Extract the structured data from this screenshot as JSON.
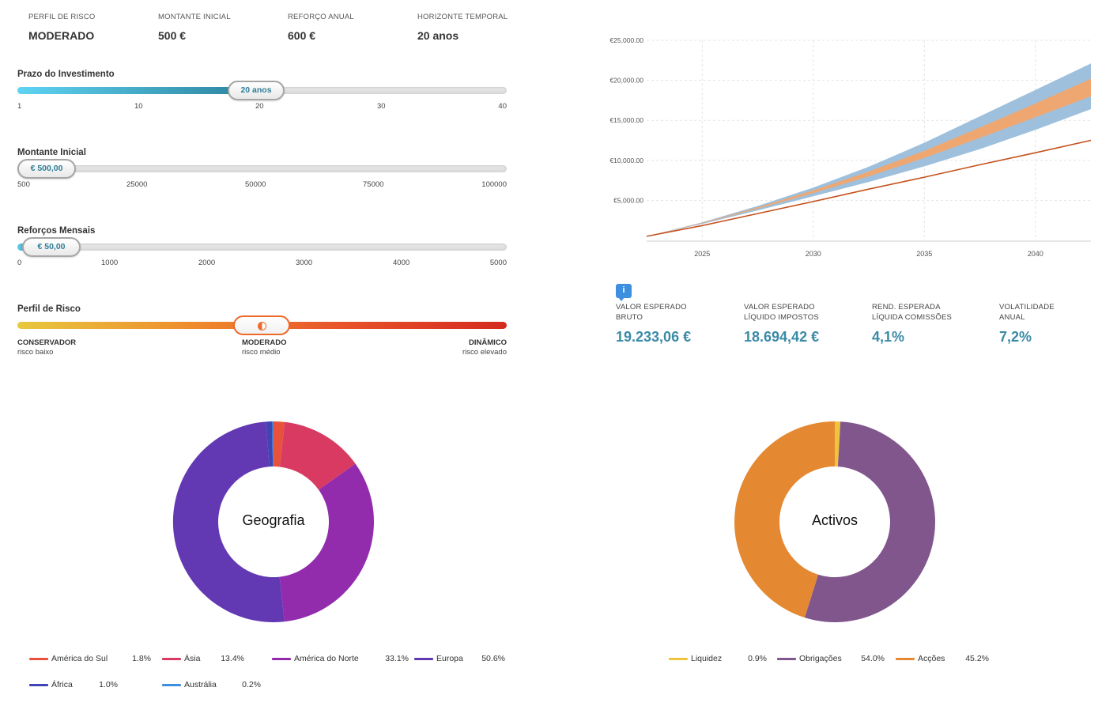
{
  "summary": {
    "risk_profile": {
      "label": "PERFIL DE RISCO",
      "value": "MODERADO"
    },
    "initial_amount": {
      "label": "MONTANTE INICIAL",
      "value": "500 €"
    },
    "annual_contribution": {
      "label": "REFORÇO ANUAL",
      "value": "600 €"
    },
    "time_horizon": {
      "label": "HORIZONTE TEMPORAL",
      "value": "20 anos"
    }
  },
  "sliders": {
    "term": {
      "title": "Prazo do Investimento",
      "value_label": "20 anos",
      "min": 1,
      "max": 40,
      "value": 20,
      "ticks": [
        "1",
        "10",
        "20",
        "30",
        "40"
      ]
    },
    "initial": {
      "title": "Montante Inicial",
      "value_label": "€ 500,00",
      "min": 500,
      "max": 100000,
      "value": 500,
      "ticks": [
        "500",
        "25000",
        "50000",
        "75000",
        "100000"
      ]
    },
    "monthly": {
      "title": "Reforços Mensais",
      "value_label": "€ 50,00",
      "min": 0,
      "max": 5000,
      "value": 50,
      "ticks": [
        "0",
        "1000",
        "2000",
        "3000",
        "4000",
        "5000"
      ]
    },
    "risk": {
      "title": "Perfil de Risco",
      "value": "MODERADO",
      "knob_icon": "half-circle-icon",
      "options": [
        {
          "name": "CONSERVADOR",
          "sub": "risco baixo"
        },
        {
          "name": "MODERADO",
          "sub": "risco médio"
        },
        {
          "name": "DINÂMICO",
          "sub": "risco elevado"
        }
      ]
    }
  },
  "chart_data": [
    {
      "type": "area",
      "title": "",
      "xlabel": "",
      "ylabel": "",
      "x_ticks": [
        "2025",
        "2030",
        "2035",
        "2040"
      ],
      "y_ticks": [
        "€5,000.00",
        "€10,000.00",
        "€15,000.00",
        "€20,000.00",
        "€25,000.00"
      ],
      "xlim": [
        2022.5,
        2042.5
      ],
      "ylim": [
        0,
        25000
      ],
      "grid": true,
      "x": [
        2022.5,
        2025,
        2027.5,
        2030,
        2032.5,
        2035,
        2037.5,
        2040,
        2042.5
      ],
      "series": [
        {
          "role": "outer-band",
          "color": "#9ec0dc",
          "low": [
            500,
            2050,
            3750,
            5500,
            7300,
            9250,
            11400,
            13800,
            16400
          ],
          "high": [
            500,
            2250,
            4300,
            6600,
            9200,
            12200,
            15500,
            18800,
            22100
          ]
        },
        {
          "role": "inner-band",
          "color": "#efa772",
          "low": [
            500,
            2120,
            3950,
            5900,
            8000,
            10300,
            12800,
            15400,
            18000
          ],
          "high": [
            500,
            2180,
            4120,
            6250,
            8600,
            11200,
            14100,
            17100,
            20200
          ]
        },
        {
          "role": "contributions-line",
          "color": "#c4511e",
          "values": [
            500,
            1850,
            3350,
            4850,
            6400,
            7900,
            9450,
            10950,
            12500
          ]
        }
      ]
    },
    {
      "type": "pie",
      "title": "Geografia",
      "slices": [
        {
          "name": "América do Sul",
          "value": 1.8,
          "label": "1.8%",
          "color": "#e8523c"
        },
        {
          "name": "Ásia",
          "value": 13.4,
          "label": "13.4%",
          "color": "#d83a62"
        },
        {
          "name": "América do Norte",
          "value": 33.1,
          "label": "33.1%",
          "color": "#922cad"
        },
        {
          "name": "Europa",
          "value": 50.6,
          "label": "50.6%",
          "color": "#6339b3"
        },
        {
          "name": "África",
          "value": 1.0,
          "label": "1.0%",
          "color": "#3f45b2"
        },
        {
          "name": "Austrália",
          "value": 0.2,
          "label": "0.2%",
          "color": "#3d8fe0"
        }
      ]
    },
    {
      "type": "pie",
      "title": "Activos",
      "slices": [
        {
          "name": "Liquidez",
          "value": 0.9,
          "label": "0.9%",
          "color": "#f0c33c"
        },
        {
          "name": "Obrigações",
          "value": 54.0,
          "label": "54.0%",
          "color": "#80568d"
        },
        {
          "name": "Acções",
          "value": 45.2,
          "label": "45.2%",
          "color": "#e48931"
        }
      ]
    }
  ],
  "metrics": {
    "info_icon": "info-icon",
    "items": [
      {
        "label_1": "VALOR ESPERADO",
        "label_2": "BRUTO",
        "value": "19.233,06 €"
      },
      {
        "label_1": "VALOR ESPERADO",
        "label_2": "LÍQUIDO IMPOSTOS",
        "value": "18.694,42 €"
      },
      {
        "label_1": "REND. ESPERADA",
        "label_2": "LÍQUIDA COMISSÕES",
        "value": "4,1%"
      },
      {
        "label_1": "VOLATILIDADE",
        "label_2": "ANUAL",
        "value": "7,2%"
      }
    ]
  }
}
